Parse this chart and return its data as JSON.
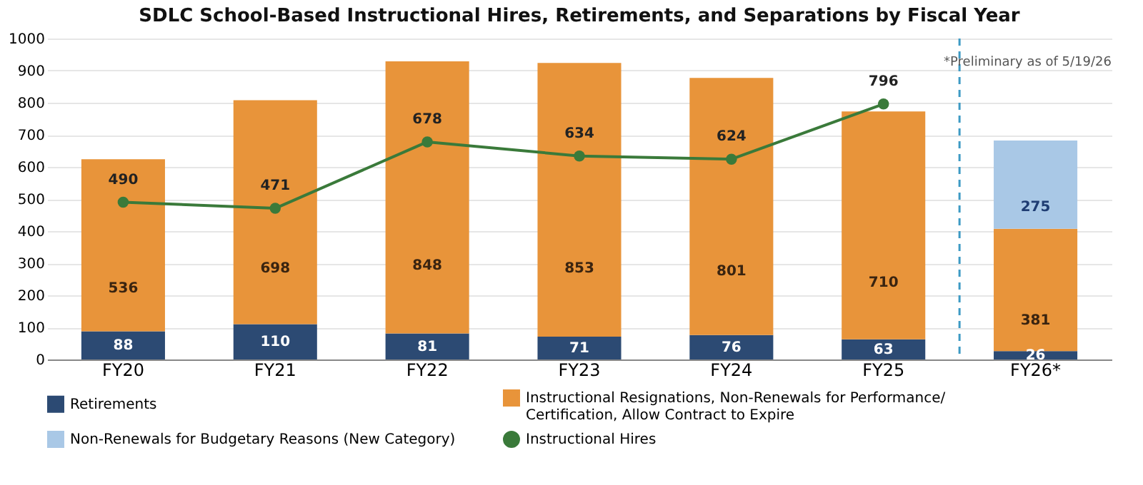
{
  "chart_data": {
    "type": "bar",
    "title": "SDLC School-Based Instructional Hires, Retirements, and Separations by Fiscal Year",
    "categories": [
      "FY20",
      "FY21",
      "FY22",
      "FY23",
      "FY24",
      "FY25",
      "FY26*"
    ],
    "stacked": true,
    "series": [
      {
        "name": "Retirements",
        "color": "#2c4a73",
        "values": [
          88,
          110,
          81,
          71,
          76,
          63,
          26
        ]
      },
      {
        "name": "Instructional Resignations, Non-Renewals for Performance/ Certification, Allow Contract to Expire",
        "color": "#e8943a",
        "values": [
          536,
          698,
          848,
          853,
          801,
          710,
          381
        ]
      },
      {
        "name": "Non-Renewals for Budgetary Reasons (New Category)",
        "color": "#a9c8e6",
        "values": [
          null,
          null,
          null,
          null,
          null,
          null,
          275
        ]
      },
      {
        "name": "Instructional Hires",
        "type": "line",
        "color": "#3a7a3a",
        "marker": "circle",
        "values": [
          490,
          471,
          678,
          634,
          624,
          796,
          null
        ]
      }
    ],
    "ylim": [
      0,
      1000
    ],
    "yticks": [
      0,
      100,
      200,
      300,
      400,
      500,
      600,
      700,
      800,
      900,
      1000
    ],
    "grid": "y",
    "legend": "bottom",
    "data_labels": true,
    "ref_lines": [
      {
        "axis": "x",
        "value": "FY26*",
        "color": "#3d9ac4",
        "line_style": "dashed"
      }
    ],
    "annotations": [
      "*Preliminary as of 5/19/26"
    ]
  }
}
